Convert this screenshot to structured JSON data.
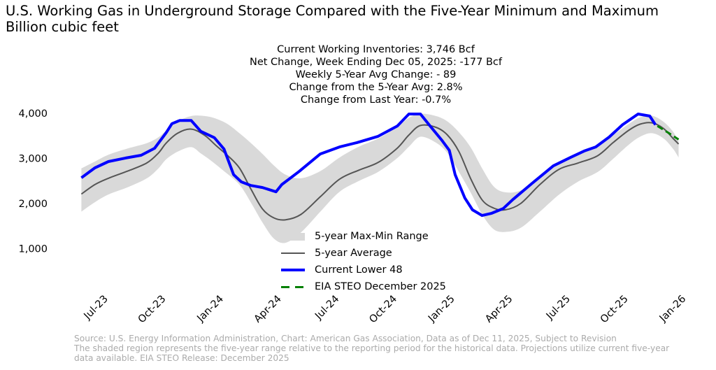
{
  "title": {
    "line1": "U.S. Working Gas in Underground Storage Compared with the Five-Year Minimum and Maximum",
    "line2": "Billion cubic feet"
  },
  "stats": [
    "Current Working Inventories: 3,746 Bcf",
    "Net Change, Week Ending Dec 05, 2025: -177 Bcf",
    "Weekly 5-Year Avg Change: - 89",
    "Change from the 5-Year Avg: 2.8%",
    "Change from Last Year: -0.7%"
  ],
  "legend": [
    {
      "label": "5-year Max-Min Range",
      "color": "#d9d9d9"
    },
    {
      "label": "5-year Average",
      "color": "#555555"
    },
    {
      "label": "Current Lower 48",
      "color": "#0000ff"
    },
    {
      "label": "EIA STEO December 2025",
      "color": "#008000"
    }
  ],
  "footer": [
    "Source: U.S. Energy Information Administration, Chart: American Gas Association, Data as of Dec 11, 2025, Subject to Revision",
    "The shaded region represents the five-year range relative to the reporting period for the historical data. Projections utilize current five-year",
    "data available. EIA STEO Release: December 2025"
  ],
  "chart_data": {
    "type": "line",
    "title": "U.S. Working Gas in Underground Storage Compared with the Five-Year Minimum and Maximum",
    "ylabel": "Billion cubic feet",
    "xlabel": "",
    "ylim": [
      0,
      4300
    ],
    "yticks": [
      1000,
      2000,
      3000,
      4000
    ],
    "ytick_labels": [
      "1,000",
      "2,000",
      "3,000",
      "4,000"
    ],
    "x_unit": "months since Jul 1, 2023",
    "xlim": [
      -1.6,
      30.6
    ],
    "xticks": [
      0,
      3,
      6,
      9,
      12,
      15,
      18,
      21,
      24,
      27,
      30
    ],
    "xtick_labels": [
      "Jul-23",
      "Oct-23",
      "Jan-24",
      "Apr-24",
      "Jul-24",
      "Oct-24",
      "Jan-25",
      "Apr-25",
      "Jul-25",
      "Oct-25",
      "Jan-26"
    ],
    "grid": false,
    "legend_position": "bottom-center",
    "series": [
      {
        "name": "5-year Max",
        "x": [
          -1.4,
          -0.7,
          0,
          1,
          2,
          2.6,
          3,
          3.6,
          4.3,
          5,
          5.6,
          6.2,
          6.8,
          7.4,
          8,
          8.6,
          9.2,
          10,
          11,
          12,
          13,
          14,
          15,
          15.6,
          16.2,
          17,
          17.6,
          18.2,
          18.8,
          19.4,
          20,
          20.6,
          21.4,
          22.4,
          23.4,
          24.4,
          25.4,
          26.2,
          27,
          27.6,
          28.2,
          28.8,
          29.3,
          29.6
        ],
        "values": [
          2780,
          2930,
          3080,
          3220,
          3340,
          3470,
          3620,
          3820,
          3940,
          3940,
          3880,
          3760,
          3560,
          3340,
          3100,
          2840,
          2640,
          2560,
          2720,
          3020,
          3260,
          3440,
          3700,
          3900,
          3990,
          3940,
          3820,
          3580,
          3250,
          2780,
          2380,
          2250,
          2290,
          2580,
          2900,
          3080,
          3280,
          3520,
          3760,
          3910,
          3950,
          3820,
          3600,
          3380
        ]
      },
      {
        "name": "5-year Min",
        "x": [
          -1.4,
          -0.7,
          0,
          1,
          2,
          2.6,
          3,
          3.6,
          4.3,
          4.8,
          5.3,
          6,
          6.8,
          7.4,
          8,
          8.6,
          9.2,
          10,
          11,
          12,
          13,
          14,
          15,
          15.6,
          16.2,
          17,
          17.6,
          18.2,
          18.8,
          19.4,
          20,
          20.6,
          21.4,
          22.4,
          23.4,
          24.4,
          25.4,
          26.2,
          27,
          27.6,
          28.2,
          28.8,
          29.3,
          29.6
        ],
        "values": [
          1820,
          2030,
          2200,
          2360,
          2560,
          2780,
          2980,
          3150,
          3250,
          3110,
          2960,
          2720,
          2420,
          2020,
          1580,
          1220,
          1130,
          1360,
          1820,
          2260,
          2500,
          2700,
          3010,
          3260,
          3480,
          3350,
          3120,
          2700,
          2250,
          1760,
          1430,
          1370,
          1460,
          1820,
          2200,
          2490,
          2700,
          2990,
          3300,
          3480,
          3560,
          3450,
          3220,
          3020
        ]
      },
      {
        "name": "5-year Average",
        "x": [
          -1.4,
          -0.7,
          0,
          1,
          2,
          2.6,
          3,
          3.6,
          4.3,
          5,
          5.6,
          6.2,
          6.8,
          7.4,
          8,
          8.6,
          9.2,
          10,
          11,
          12,
          13,
          14,
          15,
          15.6,
          16.2,
          17,
          17.6,
          18.2,
          18.8,
          19.4,
          20,
          20.6,
          21.4,
          22.4,
          23.4,
          24.4,
          25.4,
          26.2,
          27,
          27.6,
          28.2,
          28.8,
          29.3,
          29.6
        ],
        "values": [
          2210,
          2420,
          2560,
          2720,
          2900,
          3120,
          3340,
          3560,
          3650,
          3510,
          3280,
          3060,
          2790,
          2320,
          1880,
          1680,
          1640,
          1760,
          2150,
          2540,
          2740,
          2910,
          3230,
          3520,
          3730,
          3690,
          3520,
          3150,
          2560,
          2080,
          1900,
          1860,
          2000,
          2420,
          2760,
          2900,
          3060,
          3350,
          3620,
          3760,
          3790,
          3670,
          3450,
          3320
        ]
      },
      {
        "name": "Current Lower 48",
        "x": [
          -1.4,
          -0.7,
          0,
          0.9,
          1.7,
          2.4,
          3,
          3.3,
          3.7,
          4.3,
          4.8,
          5.5,
          6,
          6.5,
          6.9,
          7.4,
          8,
          8.7,
          9,
          9.9,
          11,
          12,
          12.9,
          14,
          15,
          15.6,
          16.2,
          16.7,
          17.3,
          17.7,
          18,
          18.5,
          18.9,
          19.4,
          19.9,
          20.5,
          21,
          22,
          23.1,
          24,
          24.7,
          25.3,
          26,
          26.7,
          27.5,
          28.1,
          28.4
        ],
        "values": [
          2570,
          2790,
          2930,
          3010,
          3070,
          3225,
          3570,
          3770,
          3840,
          3840,
          3600,
          3460,
          3210,
          2640,
          2480,
          2400,
          2355,
          2260,
          2420,
          2710,
          3100,
          3255,
          3350,
          3490,
          3720,
          3985,
          3985,
          3720,
          3410,
          3180,
          2640,
          2125,
          1860,
          1735,
          1785,
          1890,
          2090,
          2450,
          2835,
          3025,
          3165,
          3255,
          3475,
          3750,
          3985,
          3940,
          3746
        ]
      },
      {
        "name": "EIA STEO December 2025",
        "x": [
          28.5,
          29.1,
          29.6
        ],
        "values": [
          3720,
          3560,
          3420
        ],
        "style": "dashed"
      }
    ]
  }
}
